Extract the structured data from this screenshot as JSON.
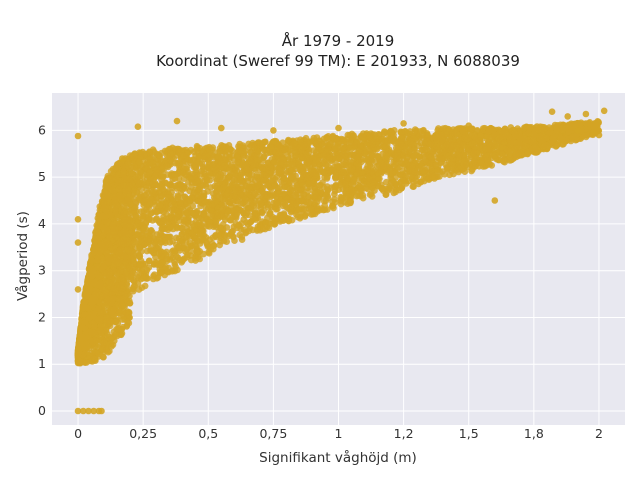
{
  "chart_data": {
    "type": "scatter",
    "title_line1": "År 1979 - 2019",
    "title_line2": "Koordinat (Sweref 99 TM): E 201933, N 6088039",
    "xlabel": "Signifikant våghöjd (m)",
    "ylabel": "Vågperiod (s)",
    "xlim": [
      -0.1,
      2.1
    ],
    "ylim": [
      -0.3,
      6.8
    ],
    "xticks": [
      0,
      0.25,
      0.5,
      0.75,
      1,
      1.25,
      1.5,
      1.75,
      2
    ],
    "xtick_labels": [
      "0",
      "0,25",
      "0,5",
      "0,75",
      "1",
      "1,2",
      "1,5",
      "1,8",
      "2"
    ],
    "yticks": [
      0,
      1,
      2,
      3,
      4,
      5,
      6
    ],
    "ytick_labels": [
      "0",
      "1",
      "2",
      "3",
      "4",
      "5",
      "6"
    ],
    "grid": true,
    "marker_color": "#D4A524",
    "plot_bg": "#E8E8F0",
    "envelope": {
      "upper": [
        [
          0.0,
          1.3
        ],
        [
          0.02,
          2.3
        ],
        [
          0.05,
          3.3
        ],
        [
          0.08,
          4.3
        ],
        [
          0.11,
          5.0
        ],
        [
          0.15,
          5.3
        ],
        [
          0.2,
          5.5
        ],
        [
          0.3,
          5.6
        ],
        [
          0.4,
          5.65
        ],
        [
          0.6,
          5.7
        ],
        [
          0.8,
          5.8
        ],
        [
          1.0,
          5.9
        ],
        [
          1.2,
          6.0
        ],
        [
          1.4,
          6.05
        ],
        [
          1.6,
          6.05
        ],
        [
          1.8,
          6.1
        ],
        [
          2.0,
          6.2
        ]
      ],
      "lower": [
        [
          0.0,
          1.0
        ],
        [
          0.05,
          1.05
        ],
        [
          0.1,
          1.1
        ],
        [
          0.15,
          1.5
        ],
        [
          0.2,
          1.9
        ],
        [
          0.3,
          2.3
        ],
        [
          0.4,
          2.6
        ],
        [
          0.5,
          2.9
        ],
        [
          0.6,
          3.2
        ],
        [
          0.7,
          3.5
        ],
        [
          0.8,
          3.7
        ],
        [
          0.9,
          3.9
        ],
        [
          1.0,
          4.1
        ],
        [
          1.2,
          4.4
        ],
        [
          1.4,
          4.8
        ],
        [
          1.6,
          5.1
        ],
        [
          1.8,
          5.5
        ],
        [
          2.0,
          5.9
        ]
      ]
    },
    "sample_points": [
      {
        "x": 0.0,
        "y": 5.88
      },
      {
        "x": 0.0,
        "y": 4.1
      },
      {
        "x": 0.0,
        "y": 3.6
      },
      {
        "x": 0.0,
        "y": 2.6
      },
      {
        "x": 0.0,
        "y": 0.0
      },
      {
        "x": 0.02,
        "y": 0.0
      },
      {
        "x": 0.04,
        "y": 0.0
      },
      {
        "x": 0.06,
        "y": 0.0
      },
      {
        "x": 0.08,
        "y": 0.0
      },
      {
        "x": 0.09,
        "y": 0.0
      },
      {
        "x": 0.17,
        "y": 5.4
      },
      {
        "x": 0.23,
        "y": 6.08
      },
      {
        "x": 0.38,
        "y": 6.2
      },
      {
        "x": 0.55,
        "y": 6.05
      },
      {
        "x": 0.75,
        "y": 6.0
      },
      {
        "x": 1.0,
        "y": 6.05
      },
      {
        "x": 1.25,
        "y": 6.15
      },
      {
        "x": 1.5,
        "y": 6.1
      },
      {
        "x": 1.6,
        "y": 4.5
      },
      {
        "x": 1.82,
        "y": 6.4
      },
      {
        "x": 1.88,
        "y": 6.3
      },
      {
        "x": 1.92,
        "y": 6.0
      },
      {
        "x": 1.95,
        "y": 6.35
      },
      {
        "x": 2.0,
        "y": 5.9
      },
      {
        "x": 2.02,
        "y": 6.42
      },
      {
        "x": 1.98,
        "y": 5.95
      }
    ]
  }
}
